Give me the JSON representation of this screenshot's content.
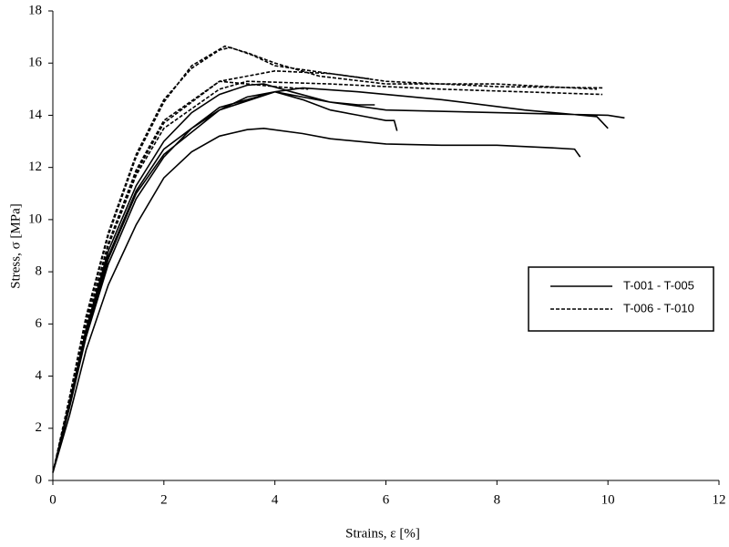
{
  "chart_data": {
    "type": "line",
    "x_label": "Strains, ε [%]",
    "y_label": "Stress, σ [MPa]",
    "xlim": [
      0,
      12
    ],
    "xticks": [
      0,
      2,
      4,
      6,
      8,
      10,
      12
    ],
    "ylim": [
      0,
      18
    ],
    "yticks": [
      0,
      2,
      4,
      6,
      8,
      10,
      12,
      14,
      16,
      18
    ],
    "grid": false,
    "legend": "right",
    "series": [
      {
        "name": "T-001 - T-005",
        "color": "#000000",
        "line_style": "solid",
        "x": [
          0,
          0.3,
          0.6,
          1,
          1.5,
          2,
          2.5,
          3,
          3.5,
          3.8,
          4.5,
          5,
          6,
          7,
          8,
          9,
          9.4,
          9.5,
          null,
          0,
          0.3,
          0.6,
          1,
          1.5,
          2,
          2.5,
          3,
          3.5,
          4,
          4.5,
          5,
          5.5,
          6,
          6.15,
          6.2,
          null,
          0,
          0.3,
          0.6,
          1,
          1.5,
          2,
          2.5,
          3,
          3.5,
          3.8,
          4.3,
          5,
          5.5,
          5.8,
          null,
          0,
          0.3,
          0.6,
          1,
          1.5,
          2,
          3,
          4,
          4.5,
          5.5,
          7,
          8.5,
          9.8,
          10,
          null,
          0,
          0.3,
          0.6,
          1,
          1.5,
          2,
          3,
          4,
          5,
          6,
          8,
          10,
          10.3
        ],
        "values": [
          0.3,
          2.5,
          5,
          7.5,
          9.8,
          11.6,
          12.6,
          13.2,
          13.45,
          13.5,
          13.3,
          13.1,
          12.9,
          12.85,
          12.85,
          12.75,
          12.7,
          12.4,
          null,
          0.3,
          2.8,
          5.5,
          8.3,
          10.8,
          12.4,
          13.5,
          14.2,
          14.7,
          14.9,
          14.6,
          14.2,
          14,
          13.8,
          13.8,
          13.4,
          null,
          0.3,
          3,
          5.8,
          8.8,
          11.3,
          13,
          14.1,
          14.8,
          15.15,
          15.2,
          14.9,
          14.5,
          14.4,
          14.4,
          null,
          0.3,
          2.9,
          5.6,
          8.5,
          11,
          12.5,
          14.2,
          14.9,
          15.05,
          14.9,
          14.6,
          14.2,
          13.95,
          13.5,
          null,
          0.3,
          2.9,
          5.7,
          8.6,
          11.1,
          12.7,
          14.3,
          14.9,
          14.5,
          14.2,
          14.1,
          14,
          13.9
        ]
      },
      {
        "name": "T-006 - T-010",
        "color": "#000000",
        "line_style": "dashed",
        "x": [
          0,
          0.3,
          0.6,
          1,
          1.5,
          2,
          2.5,
          3,
          3.2,
          3.6,
          4,
          5,
          5.7,
          null,
          0,
          0.3,
          0.6,
          1,
          1.5,
          2,
          2.5,
          3.1,
          3.5,
          4,
          4.8,
          6,
          8,
          9.8,
          null,
          0,
          0.3,
          0.6,
          1,
          1.5,
          2,
          3,
          4,
          5,
          6,
          8,
          9.9,
          null,
          0,
          0.3,
          0.6,
          1,
          1.5,
          2,
          3,
          3.5,
          5,
          7,
          9.9,
          null,
          0,
          0.3,
          0.6,
          1,
          1.5,
          2,
          3,
          4,
          4.6
        ],
        "values": [
          0.3,
          3.2,
          6.3,
          9.5,
          12.5,
          14.6,
          15.8,
          16.5,
          16.6,
          16.3,
          15.9,
          15.6,
          15.4,
          null,
          0.3,
          3.2,
          6.2,
          9.4,
          12.4,
          14.5,
          15.9,
          16.65,
          16.4,
          16,
          15.5,
          15.2,
          15.2,
          15,
          null,
          0.3,
          3,
          6,
          9.1,
          11.9,
          13.8,
          15.3,
          15.7,
          15.6,
          15.3,
          15.1,
          15.05,
          null,
          0.3,
          3,
          5.9,
          9,
          11.7,
          13.5,
          15,
          15.3,
          15.2,
          15,
          14.8,
          null,
          0.3,
          3.1,
          6,
          9.1,
          11.8,
          13.7,
          15.3,
          15.1,
          15
        ]
      }
    ]
  }
}
